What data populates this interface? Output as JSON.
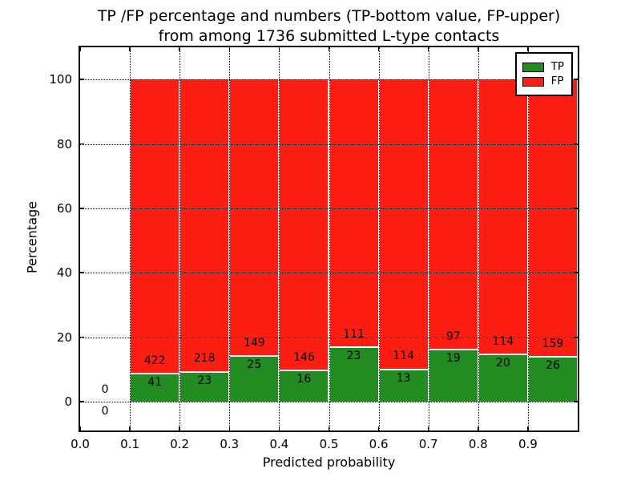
{
  "title": {
    "line1": "TP /FP percentage and numbers (TP-bottom value, FP-upper)",
    "line2": "from among 1736 submitted L-type contacts"
  },
  "colors": {
    "tp_green": "#228b22",
    "fp_red": "#fc1d13",
    "frame_black": "#000000",
    "background_white": "#ffffff"
  },
  "legend": {
    "entries": [
      {
        "label": "TP",
        "color": "#228b22"
      },
      {
        "label": "FP",
        "color": "#fc1d13"
      }
    ]
  },
  "chart_data": {
    "type": "bar",
    "stacked": true,
    "normalized": "each bar normalized to 100%; labels show raw counts (TP bottom, FP upper)",
    "title": "TP /FP percentage and numbers (TP-bottom value, FP-upper) from among 1736 submitted L-type contacts",
    "xlabel": "Predicted probability",
    "ylabel": "Percentage",
    "xlim": [
      0.0,
      1.0
    ],
    "ylim": [
      -9,
      110
    ],
    "grid": true,
    "legend_position": "upper right",
    "xtick_labels": [
      "0.0",
      "0.1",
      "0.2",
      "0.3",
      "0.4",
      "0.5",
      "0.6",
      "0.7",
      "0.8",
      "0.9"
    ],
    "xtick_values": [
      0.0,
      0.1,
      0.2,
      0.3,
      0.4,
      0.5,
      0.6,
      0.7,
      0.8,
      0.9
    ],
    "ytick_values": [
      0,
      20,
      40,
      60,
      80,
      100
    ],
    "categories": [
      "0.0-0.1",
      "0.1-0.2",
      "0.2-0.3",
      "0.3-0.4",
      "0.4-0.5",
      "0.5-0.6",
      "0.6-0.7",
      "0.7-0.8",
      "0.8-0.9",
      "0.9-1.0"
    ],
    "series": [
      {
        "name": "TP",
        "color": "#228b22",
        "counts": [
          0,
          41,
          23,
          25,
          16,
          23,
          13,
          19,
          20,
          26
        ]
      },
      {
        "name": "FP",
        "color": "#fc1d13",
        "counts": [
          0,
          422,
          218,
          149,
          146,
          111,
          114,
          97,
          114,
          159
        ]
      }
    ],
    "bins": [
      {
        "x_start": 0.0,
        "x_end": 0.1,
        "tp": 0,
        "fp": 0
      },
      {
        "x_start": 0.1,
        "x_end": 0.2,
        "tp": 41,
        "fp": 422
      },
      {
        "x_start": 0.2,
        "x_end": 0.3,
        "tp": 23,
        "fp": 218
      },
      {
        "x_start": 0.3,
        "x_end": 0.4,
        "tp": 25,
        "fp": 149
      },
      {
        "x_start": 0.4,
        "x_end": 0.5,
        "tp": 16,
        "fp": 146
      },
      {
        "x_start": 0.5,
        "x_end": 0.6,
        "tp": 23,
        "fp": 111
      },
      {
        "x_start": 0.6,
        "x_end": 0.7,
        "tp": 13,
        "fp": 114
      },
      {
        "x_start": 0.7,
        "x_end": 0.8,
        "tp": 19,
        "fp": 97
      },
      {
        "x_start": 0.8,
        "x_end": 0.9,
        "tp": 20,
        "fp": 114
      },
      {
        "x_start": 0.9,
        "x_end": 1.0,
        "tp": 26,
        "fp": 159
      }
    ],
    "tp_percent": [
      0,
      8.9,
      9.5,
      14.4,
      9.9,
      17.2,
      10.2,
      16.4,
      14.9,
      14.1
    ],
    "fp_percent": [
      0,
      91.1,
      90.5,
      85.6,
      90.1,
      82.8,
      89.8,
      83.6,
      85.1,
      85.9
    ]
  }
}
